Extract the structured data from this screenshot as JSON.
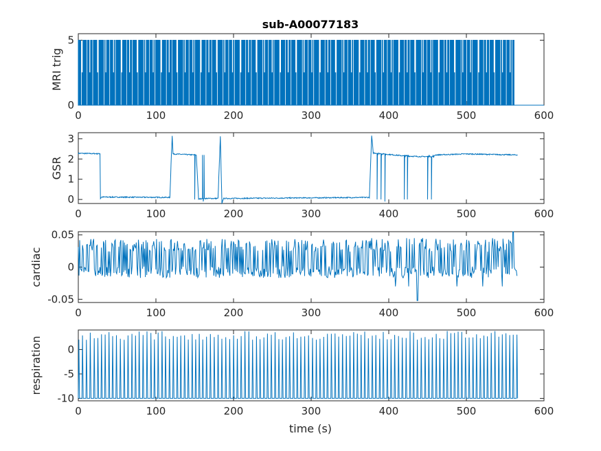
{
  "chart_data": {
    "type": "line",
    "title": "sub-A00077183",
    "xlabel": "time (s)",
    "line_color": "#0072BD",
    "panels": [
      {
        "ylabel": "MRI trig",
        "xlim": [
          0,
          600
        ],
        "ylim": [
          0,
          5.5
        ],
        "xticks": [
          0,
          100,
          200,
          300,
          400,
          500,
          600
        ],
        "yticks": [
          0,
          5
        ],
        "ytick_labels": [
          "0",
          "5"
        ],
        "signal": "pulse train between 0 and 5 (some pulses at 2.5) until ~563 s, then 0",
        "points": [
          [
            0,
            2.5
          ],
          [
            1,
            5
          ],
          [
            2,
            0
          ],
          [
            3,
            5
          ],
          [
            4,
            0
          ],
          [
            100,
            5
          ],
          [
            101,
            0
          ],
          [
            200,
            5
          ],
          [
            201,
            0
          ],
          [
            300,
            5
          ],
          [
            301,
            0
          ],
          [
            400,
            5
          ],
          [
            401,
            0
          ],
          [
            500,
            5
          ],
          [
            501,
            0
          ],
          [
            562,
            5
          ],
          [
            563,
            0
          ],
          [
            600,
            0
          ]
        ]
      },
      {
        "ylabel": "GSR",
        "xlim": [
          0,
          600
        ],
        "ylim": [
          -0.2,
          3.3
        ],
        "xticks": [
          0,
          100,
          200,
          300,
          400,
          500,
          600
        ],
        "yticks": [
          0,
          1,
          2,
          3
        ],
        "ytick_labels": [
          "0",
          "1",
          "2",
          "3"
        ],
        "points": [
          [
            0,
            2.28
          ],
          [
            28,
            2.26
          ],
          [
            28.5,
            0.05
          ],
          [
            30,
            0.12
          ],
          [
            118,
            0.1
          ],
          [
            120,
            2.3
          ],
          [
            121,
            3.15
          ],
          [
            122,
            2.25
          ],
          [
            150,
            2.2
          ],
          [
            152,
            2.2
          ],
          [
            155,
            0.02
          ],
          [
            160,
            0.05
          ],
          [
            180,
            0.05
          ],
          [
            183,
            3.1
          ],
          [
            185,
            -0.2
          ],
          [
            187,
            0.05
          ],
          [
            375,
            0.1
          ],
          [
            378,
            3.15
          ],
          [
            380,
            2.3
          ],
          [
            420,
            2.15
          ],
          [
            440,
            2.12
          ],
          [
            458,
            2.12
          ],
          [
            460,
            2.2
          ],
          [
            500,
            2.25
          ],
          [
            566,
            2.2
          ]
        ]
      },
      {
        "ylabel": "cardiac",
        "xlim": [
          0,
          600
        ],
        "ylim": [
          -0.055,
          0.055
        ],
        "xticks": [
          0,
          100,
          200,
          300,
          400,
          500,
          600
        ],
        "yticks": [
          -0.05,
          0,
          0.05
        ],
        "ytick_labels": [
          "-0.05",
          "0",
          "0.05"
        ],
        "signal": "dense oscillation roughly between -0.01 and 0.035, spikes to 0.055 and -0.052, ends at 567 s",
        "points": [
          [
            0,
            0.01
          ],
          [
            566,
            0.01
          ]
        ]
      },
      {
        "ylabel": "respiration",
        "xlim": [
          0,
          600
        ],
        "ylim": [
          -10.5,
          4
        ],
        "xticks": [
          0,
          100,
          200,
          300,
          400,
          500,
          600
        ],
        "yticks": [
          -10,
          -5,
          0
        ],
        "ytick_labels": [
          "-10",
          "-5",
          "0"
        ],
        "signal": "periodic spikes from about -10 to about 3, period ~4.5 s, ends at 567 s",
        "points": [
          [
            0,
            -10
          ],
          [
            2,
            3.6
          ],
          [
            566,
            -10
          ]
        ]
      }
    ]
  }
}
